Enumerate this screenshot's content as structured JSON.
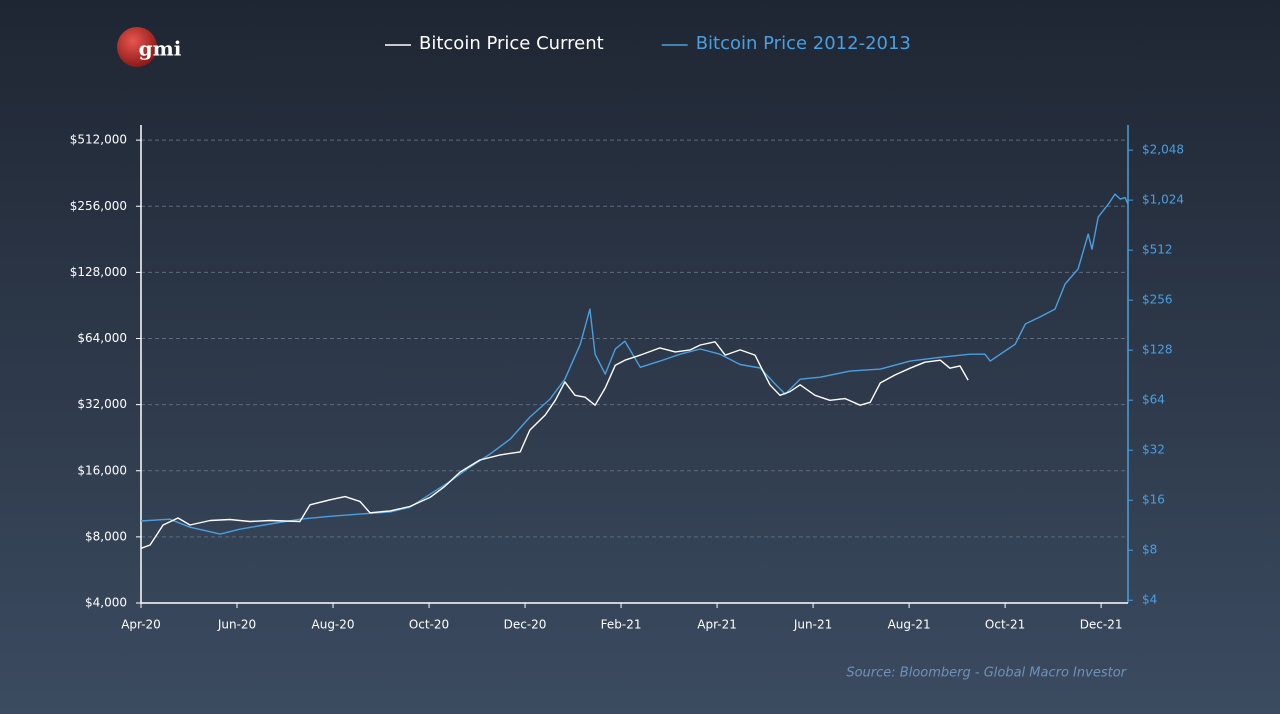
{
  "logo": "gmi",
  "chart_data": {
    "type": "line",
    "source": "Source: Bloomberg - Global Macro Investor",
    "log_scale": true,
    "grid": true,
    "legend": "top",
    "xlim": [
      0,
      20.56
    ],
    "xticks": [
      {
        "value": 0,
        "label": "Apr-20"
      },
      {
        "value": 2,
        "label": "Jun-20"
      },
      {
        "value": 4,
        "label": "Aug-20"
      },
      {
        "value": 6,
        "label": "Oct-20"
      },
      {
        "value": 8,
        "label": "Dec-20"
      },
      {
        "value": 10,
        "label": "Feb-21"
      },
      {
        "value": 12,
        "label": "Apr-21"
      },
      {
        "value": 14,
        "label": "Jun-21"
      },
      {
        "value": 16,
        "label": "Aug-21"
      },
      {
        "value": 18,
        "label": "Oct-21"
      },
      {
        "value": 20,
        "label": "Dec-21"
      }
    ],
    "ylim": [
      4000,
      600000
    ],
    "yticks": [
      {
        "value": 4000,
        "label": "$4,000"
      },
      {
        "value": 8000,
        "label": "$8,000"
      },
      {
        "value": 16000,
        "label": "$16,000"
      },
      {
        "value": 32000,
        "label": "$32,000"
      },
      {
        "value": 64000,
        "label": "$64,000"
      },
      {
        "value": 128000,
        "label": "$128,000"
      },
      {
        "value": 256000,
        "label": "$256,000"
      },
      {
        "value": 512000,
        "label": "$512,000"
      }
    ],
    "y2lim": [
      3.85,
      2900
    ],
    "y2ticks": [
      {
        "value": 4,
        "label": "$4"
      },
      {
        "value": 8,
        "label": "$8"
      },
      {
        "value": 16,
        "label": "$16"
      },
      {
        "value": 32,
        "label": "$32"
      },
      {
        "value": 64,
        "label": "$64"
      },
      {
        "value": 128,
        "label": "$128"
      },
      {
        "value": 256,
        "label": "$256"
      },
      {
        "value": 512,
        "label": "$512"
      },
      {
        "value": 1024,
        "label": "$1,024"
      },
      {
        "value": 2048,
        "label": "$2,048"
      }
    ],
    "series": [
      {
        "name": "Bitcoin Price Current",
        "color": "#ffffff",
        "axis": "y",
        "x": [
          0,
          0.19,
          0.46,
          0.77,
          1.02,
          1.44,
          1.85,
          2.27,
          2.69,
          3.31,
          3.52,
          3.94,
          4.25,
          4.56,
          4.77,
          5.19,
          5.6,
          6.02,
          6.33,
          6.65,
          7.06,
          7.48,
          7.9,
          8.1,
          8.42,
          8.63,
          8.83,
          9.04,
          9.25,
          9.46,
          9.67,
          9.88,
          10.08,
          10.4,
          10.81,
          11.13,
          11.44,
          11.65,
          11.96,
          12.17,
          12.48,
          12.79,
          13.1,
          13.31,
          13.52,
          13.73,
          14.04,
          14.35,
          14.67,
          14.98,
          15.19,
          15.4,
          15.71,
          16.02,
          16.33,
          16.65,
          16.85,
          17.06,
          17.23
        ],
        "values": [
          7100,
          7350,
          9060,
          9750,
          9060,
          9500,
          9600,
          9400,
          9500,
          9400,
          11200,
          11800,
          12200,
          11600,
          10300,
          10500,
          11000,
          12100,
          13600,
          15800,
          17900,
          18900,
          19500,
          24500,
          28700,
          33500,
          40600,
          35300,
          34600,
          31800,
          38100,
          48400,
          51000,
          53800,
          58000,
          55600,
          56800,
          59800,
          61800,
          53800,
          56800,
          53800,
          39400,
          35300,
          36700,
          39400,
          35300,
          33500,
          34100,
          31800,
          32800,
          40200,
          43700,
          46900,
          49900,
          51000,
          46900,
          48000,
          41400
        ]
      },
      {
        "name": "Bitcoin Price 2012-2013",
        "color": "#4a9fe0",
        "axis": "y2",
        "x": [
          0,
          0.6,
          1.02,
          1.65,
          2.06,
          2.69,
          3.31,
          3.94,
          4.56,
          5.19,
          5.6,
          6.02,
          6.44,
          6.85,
          7.27,
          7.69,
          8.1,
          8.52,
          8.83,
          9.15,
          9.35,
          9.46,
          9.67,
          9.88,
          10.08,
          10.4,
          10.81,
          11.23,
          11.65,
          12.06,
          12.48,
          12.9,
          13.21,
          13.42,
          13.73,
          14.15,
          14.77,
          15.4,
          16.02,
          16.65,
          17.27,
          17.58,
          17.69,
          17.9,
          18.21,
          18.42,
          18.73,
          19.04,
          19.25,
          19.52,
          19.73,
          19.81,
          19.94,
          20.15,
          20.29,
          20.4,
          20.5,
          20.56
        ],
        "values": [
          12,
          12.3,
          11,
          10,
          10.7,
          11.5,
          12.3,
          12.8,
          13.2,
          13.6,
          14.5,
          17.4,
          20.8,
          25.3,
          30.3,
          37.3,
          50.6,
          65,
          85.6,
          139,
          226,
          121,
          91.8,
          130,
          145,
          101,
          110,
          121,
          130,
          121,
          105,
          100,
          80,
          69.6,
          85.6,
          88,
          95.7,
          98.4,
          110,
          116,
          121,
          121,
          110,
          121,
          139,
          184,
          203,
          226,
          320,
          394,
          639,
          519,
          809,
          968,
          1113,
          1038,
          1060,
          968
        ]
      }
    ]
  }
}
